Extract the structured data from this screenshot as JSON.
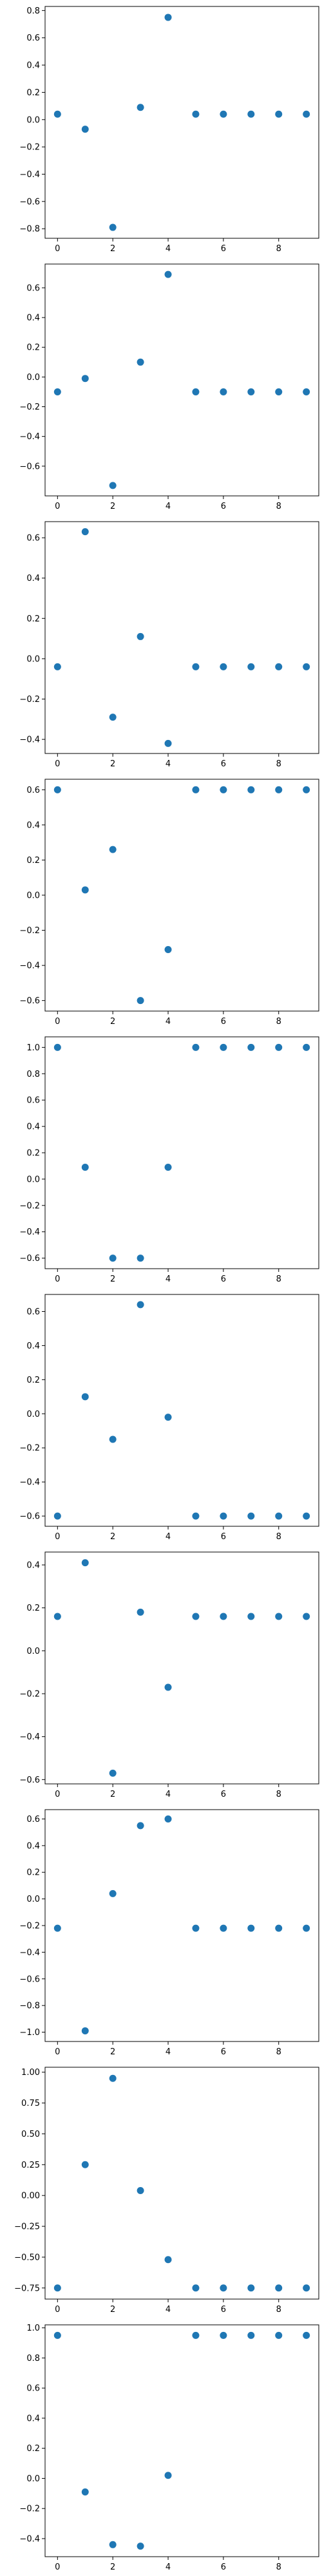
{
  "chart_data": [
    {
      "type": "scatter",
      "x": [
        0,
        1,
        2,
        3,
        4,
        5,
        6,
        7,
        8,
        9
      ],
      "y": [
        0.04,
        -0.07,
        -0.79,
        0.09,
        0.75,
        0.04,
        0.04,
        0.04,
        0.04,
        0.04
      ],
      "xlim": [
        -0.45,
        9.45
      ],
      "ylim": [
        -0.87,
        0.83
      ],
      "xticks": [
        0,
        2,
        4,
        6,
        8
      ],
      "xtick_labels": [
        "0",
        "2",
        "4",
        "6",
        "8"
      ],
      "yticks": [
        -0.8,
        -0.6,
        -0.4,
        -0.2,
        0.0,
        0.2,
        0.4,
        0.6,
        0.8
      ],
      "ytick_labels": [
        "−0.8",
        "−0.6",
        "−0.4",
        "−0.2",
        "0.0",
        "0.2",
        "0.4",
        "0.6",
        "0.8"
      ],
      "grid": false,
      "color": "#1f77b4"
    },
    {
      "type": "scatter",
      "x": [
        0,
        1,
        2,
        3,
        4,
        5,
        6,
        7,
        8,
        9
      ],
      "y": [
        -0.1,
        -0.01,
        -0.73,
        0.1,
        0.69,
        -0.1,
        -0.1,
        -0.1,
        -0.1,
        -0.1
      ],
      "xlim": [
        -0.45,
        9.45
      ],
      "ylim": [
        -0.8,
        0.76
      ],
      "xticks": [
        0,
        2,
        4,
        6,
        8
      ],
      "xtick_labels": [
        "0",
        "2",
        "4",
        "6",
        "8"
      ],
      "yticks": [
        -0.6,
        -0.4,
        -0.2,
        0.0,
        0.2,
        0.4,
        0.6
      ],
      "ytick_labels": [
        "−0.6",
        "−0.4",
        "−0.2",
        "0.0",
        "0.2",
        "0.4",
        "0.6"
      ],
      "grid": false,
      "color": "#1f77b4"
    },
    {
      "type": "scatter",
      "x": [
        0,
        1,
        2,
        3,
        4,
        5,
        6,
        7,
        8,
        9
      ],
      "y": [
        -0.04,
        0.63,
        -0.29,
        0.11,
        -0.42,
        -0.04,
        -0.04,
        -0.04,
        -0.04,
        -0.04
      ],
      "xlim": [
        -0.45,
        9.45
      ],
      "ylim": [
        -0.47,
        0.68
      ],
      "xticks": [
        0,
        2,
        4,
        6,
        8
      ],
      "xtick_labels": [
        "0",
        "2",
        "4",
        "6",
        "8"
      ],
      "yticks": [
        -0.4,
        -0.2,
        0.0,
        0.2,
        0.4,
        0.6
      ],
      "ytick_labels": [
        "−0.4",
        "−0.2",
        "0.0",
        "0.2",
        "0.4",
        "0.6"
      ],
      "grid": false,
      "color": "#1f77b4"
    },
    {
      "type": "scatter",
      "x": [
        0,
        1,
        2,
        3,
        4,
        5,
        6,
        7,
        8,
        9
      ],
      "y": [
        0.6,
        0.03,
        0.26,
        -0.6,
        -0.31,
        0.6,
        0.6,
        0.6,
        0.6,
        0.6
      ],
      "xlim": [
        -0.45,
        9.45
      ],
      "ylim": [
        -0.66,
        0.66
      ],
      "xticks": [
        0,
        2,
        4,
        6,
        8
      ],
      "xtick_labels": [
        "0",
        "2",
        "4",
        "6",
        "8"
      ],
      "yticks": [
        -0.6,
        -0.4,
        -0.2,
        0.0,
        0.2,
        0.4,
        0.6
      ],
      "ytick_labels": [
        "−0.6",
        "−0.4",
        "−0.2",
        "0.0",
        "0.2",
        "0.4",
        "0.6"
      ],
      "grid": false,
      "color": "#1f77b4"
    },
    {
      "type": "scatter",
      "x": [
        0,
        1,
        2,
        3,
        4,
        5,
        6,
        7,
        8,
        9
      ],
      "y": [
        1.0,
        0.09,
        -0.6,
        -0.6,
        0.09,
        1.0,
        1.0,
        1.0,
        1.0,
        1.0
      ],
      "xlim": [
        -0.45,
        9.45
      ],
      "ylim": [
        -0.68,
        1.08
      ],
      "xticks": [
        0,
        2,
        4,
        6,
        8
      ],
      "xtick_labels": [
        "0",
        "2",
        "4",
        "6",
        "8"
      ],
      "yticks": [
        -0.6,
        -0.4,
        -0.2,
        0.0,
        0.2,
        0.4,
        0.6,
        0.8,
        1.0
      ],
      "ytick_labels": [
        "−0.6",
        "−0.4",
        "−0.2",
        "0.0",
        "0.2",
        "0.4",
        "0.6",
        "0.8",
        "1.0"
      ],
      "grid": false,
      "color": "#1f77b4"
    },
    {
      "type": "scatter",
      "x": [
        0,
        1,
        2,
        3,
        4,
        5,
        6,
        7,
        8,
        9
      ],
      "y": [
        -0.6,
        0.1,
        -0.15,
        0.64,
        -0.02,
        -0.6,
        -0.6,
        -0.6,
        -0.6,
        -0.6
      ],
      "xlim": [
        -0.45,
        9.45
      ],
      "ylim": [
        -0.66,
        0.7
      ],
      "xticks": [
        0,
        2,
        4,
        6,
        8
      ],
      "xtick_labels": [
        "0",
        "2",
        "4",
        "6",
        "8"
      ],
      "yticks": [
        -0.6,
        -0.4,
        -0.2,
        0.0,
        0.2,
        0.4,
        0.6
      ],
      "ytick_labels": [
        "−0.6",
        "−0.4",
        "−0.2",
        "0.0",
        "0.2",
        "0.4",
        "0.6"
      ],
      "grid": false,
      "color": "#1f77b4"
    },
    {
      "type": "scatter",
      "x": [
        0,
        1,
        2,
        3,
        4,
        5,
        6,
        7,
        8,
        9
      ],
      "y": [
        0.16,
        0.41,
        -0.57,
        0.18,
        -0.17,
        0.16,
        0.16,
        0.16,
        0.16,
        0.16
      ],
      "xlim": [
        -0.45,
        9.45
      ],
      "ylim": [
        -0.62,
        0.46
      ],
      "xticks": [
        0,
        2,
        4,
        6,
        8
      ],
      "xtick_labels": [
        "0",
        "2",
        "4",
        "6",
        "8"
      ],
      "yticks": [
        -0.6,
        -0.4,
        -0.2,
        0.0,
        0.2,
        0.4
      ],
      "ytick_labels": [
        "−0.6",
        "−0.4",
        "−0.2",
        "0.0",
        "0.2",
        "0.4"
      ],
      "grid": false,
      "color": "#1f77b4"
    },
    {
      "type": "scatter",
      "x": [
        0,
        1,
        2,
        3,
        4,
        5,
        6,
        7,
        8,
        9
      ],
      "y": [
        -0.22,
        -0.99,
        0.04,
        0.55,
        0.6,
        -0.22,
        -0.22,
        -0.22,
        -0.22,
        -0.22
      ],
      "xlim": [
        -0.45,
        9.45
      ],
      "ylim": [
        -1.07,
        0.67
      ],
      "xticks": [
        0,
        2,
        4,
        6,
        8
      ],
      "xtick_labels": [
        "0",
        "2",
        "4",
        "6",
        "8"
      ],
      "yticks": [
        -1.0,
        -0.8,
        -0.6,
        -0.4,
        -0.2,
        0.0,
        0.2,
        0.4,
        0.6
      ],
      "ytick_labels": [
        "−1.0",
        "−0.8",
        "−0.6",
        "−0.4",
        "−0.2",
        "0.0",
        "0.2",
        "0.4",
        "0.6"
      ],
      "grid": false,
      "color": "#1f77b4"
    },
    {
      "type": "scatter",
      "x": [
        0,
        1,
        2,
        3,
        4,
        5,
        6,
        7,
        8,
        9
      ],
      "y": [
        -0.75,
        0.25,
        0.95,
        0.04,
        -0.52,
        -0.75,
        -0.75,
        -0.75,
        -0.75,
        -0.75
      ],
      "xlim": [
        -0.45,
        9.45
      ],
      "ylim": [
        -0.84,
        1.04
      ],
      "xticks": [
        0,
        2,
        4,
        6,
        8
      ],
      "xtick_labels": [
        "0",
        "2",
        "4",
        "6",
        "8"
      ],
      "yticks": [
        -0.75,
        -0.5,
        -0.25,
        0.0,
        0.25,
        0.5,
        0.75,
        1.0
      ],
      "ytick_labels": [
        "−0.75",
        "−0.50",
        "−0.25",
        "0.00",
        "0.25",
        "0.50",
        "0.75",
        "1.00"
      ],
      "grid": false,
      "color": "#1f77b4"
    },
    {
      "type": "scatter",
      "x": [
        0,
        1,
        2,
        3,
        4,
        5,
        6,
        7,
        8,
        9
      ],
      "y": [
        0.95,
        -0.09,
        -0.44,
        -0.45,
        0.02,
        0.95,
        0.95,
        0.95,
        0.95,
        0.95
      ],
      "xlim": [
        -0.45,
        9.45
      ],
      "ylim": [
        -0.52,
        1.02
      ],
      "xticks": [
        0,
        2,
        4,
        6,
        8
      ],
      "xtick_labels": [
        "0",
        "2",
        "4",
        "6",
        "8"
      ],
      "yticks": [
        -0.4,
        -0.2,
        0.0,
        0.2,
        0.4,
        0.6,
        0.8,
        1.0
      ],
      "ytick_labels": [
        "−0.4",
        "−0.2",
        "0.0",
        "0.2",
        "0.4",
        "0.6",
        "0.8",
        "1.0"
      ],
      "grid": false,
      "color": "#1f77b4"
    }
  ]
}
